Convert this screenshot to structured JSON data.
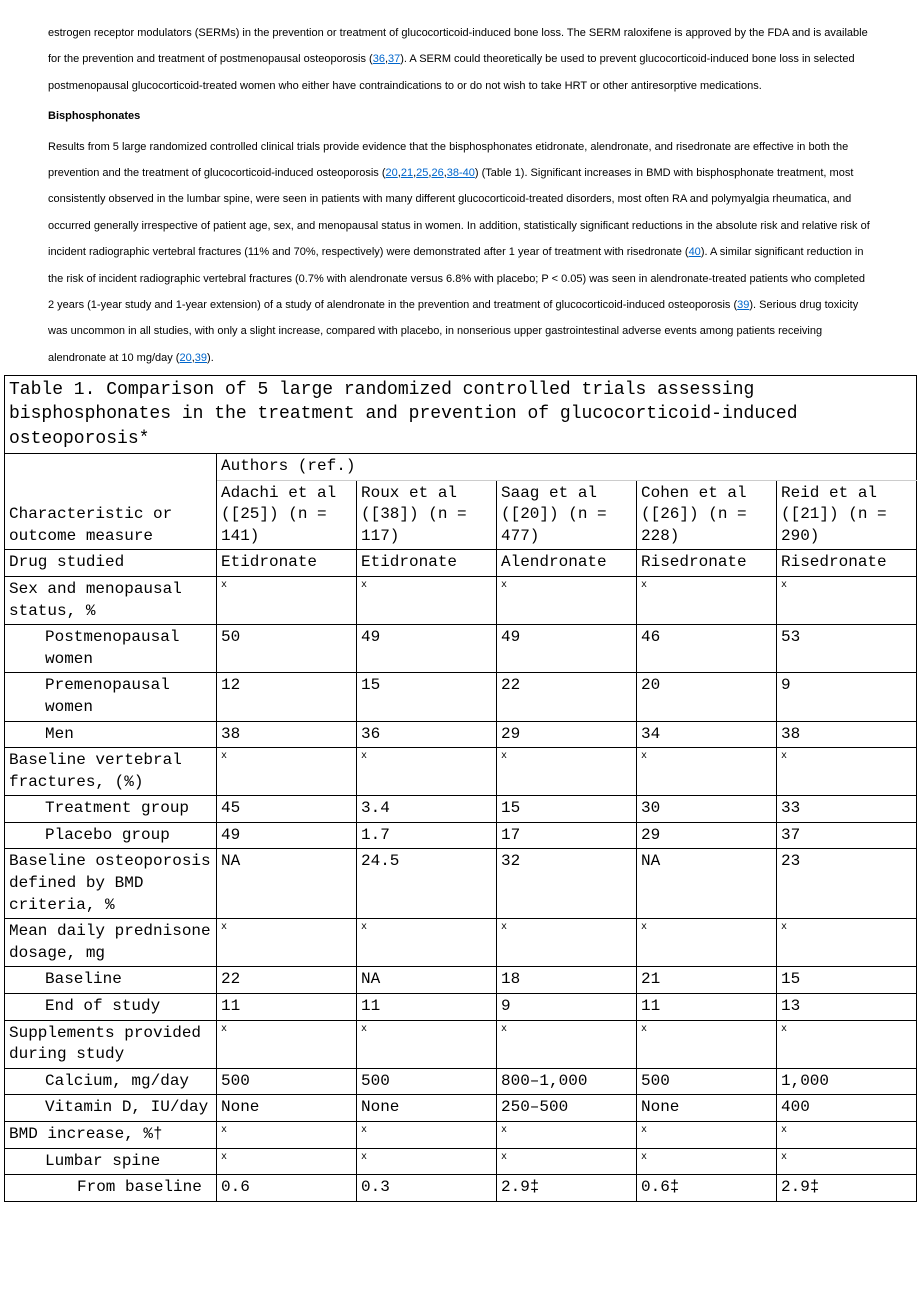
{
  "paragraphs": {
    "p1_a": "estrogen receptor modulators (SERMs) in the prevention or treatment of glucocorticoid-induced bone loss. The SERM raloxifene is approved by the FDA and is available for the prevention and treatment of postmenopausal osteoporosis (",
    "p1_ref1": "36",
    "p1_sep1": ",",
    "p1_ref2": "37",
    "p1_b": "). A SERM could theoretically be used to prevent glucocorticoid-induced bone loss in selected postmenopausal glucocorticoid-treated women who either have contraindications to or do not wish to take HRT or other antiresorptive medications."
  },
  "heading_bisphosphonates": "Bisphosphonates",
  "p2": {
    "a": "Results from 5 large randomized controlled clinical trials provide evidence that the bisphosphonates etidronate, alendronate, and risedronate are effective in both the prevention and the treatment of glucocorticoid-induced osteoporosis (",
    "r1": "20",
    "s1": ",",
    "r2": "21",
    "s2": ",",
    "r3": "25",
    "s3": ",",
    "r4": "26",
    "s4": ",",
    "r5": "38-40",
    "b": ") (Table 1). Significant increases in BMD with bisphosphonate treatment, most consistently observed in the lumbar spine, were seen in patients with many different glucocorticoid-treated disorders, most often RA and polymyalgia rheumatica, and occurred generally irrespective of patient age, sex, and menopausal status in women. In addition, statistically significant reductions in the absolute risk and relative risk of incident radiographic vertebral fractures (11% and 70%, respectively) were demonstrated after 1 year of treatment with risedronate (",
    "r6": "40",
    "c": "). A similar significant reduction in the risk of incident radiographic vertebral fractures (0.7% with alendronate versus 6.8% with placebo; P < 0.05) was seen in alendronate-treated patients who completed 2 years (1-year study and 1-year extension) of a study of alendronate in the prevention and treatment of glucocorticoid-induced osteoporosis (",
    "r7": "39",
    "d": "). Serious drug toxicity was uncommon in all studies, with only a slight increase, compared with placebo, in nonserious upper gastrointestinal adverse events among patients receiving alendronate at 10 mg/day (",
    "r8": "20",
    "s5": ",",
    "r9": "39",
    "e": ")."
  },
  "table": {
    "caption": "Table 1. Comparison of 5 large randomized controlled trials assessing bisphosphonates in the treatment and prevention of glucocorticoid-induced osteoporosis*",
    "header_rowcol": "Characteristic or outcome measure",
    "header_group": "Authors (ref.)",
    "cols": [
      "Adachi et al ([25]) (n = 141)",
      "Roux et al ([38]) (n = 117)",
      "Saag et al ([20]) (n = 477)",
      "Cohen et al ([26]) (n = 228)",
      "Reid et al ([21]) (n = 290)"
    ],
    "rows": [
      {
        "label": "Drug studied",
        "indent": 0,
        "vals": [
          "Etidronate",
          "Etidronate",
          "Alendronate",
          "Risedronate",
          "Risedronate"
        ]
      },
      {
        "label": "Sex and menopausal status, %",
        "indent": 0,
        "vals": [
          "x",
          "x",
          "x",
          "x",
          "x"
        ],
        "x": true
      },
      {
        "label": "Postmenopausal women",
        "indent": 1,
        "vals": [
          "50",
          "49",
          "49",
          "46",
          "53"
        ]
      },
      {
        "label": "Premenopausal women",
        "indent": 1,
        "vals": [
          "12",
          "15",
          "22",
          "20",
          "9"
        ]
      },
      {
        "label": "Men",
        "indent": 1,
        "vals": [
          "38",
          "36",
          "29",
          "34",
          "38"
        ]
      },
      {
        "label": "Baseline vertebral fractures, (%)",
        "indent": 0,
        "vals": [
          "x",
          "x",
          "x",
          "x",
          "x"
        ],
        "x": true
      },
      {
        "label": "Treatment group",
        "indent": 1,
        "vals": [
          "45",
          "3.4",
          "15",
          "30",
          "33"
        ]
      },
      {
        "label": "Placebo group",
        "indent": 1,
        "vals": [
          "49",
          "1.7",
          "17",
          "29",
          "37"
        ]
      },
      {
        "label": "Baseline osteoporosis defined by BMD criteria, %",
        "indent": 0,
        "vals": [
          "NA",
          "24.5",
          "32",
          "NA",
          "23"
        ]
      },
      {
        "label": "Mean daily prednisone dosage, mg",
        "indent": 0,
        "vals": [
          "x",
          "x",
          "x",
          "x",
          "x"
        ],
        "x": true
      },
      {
        "label": "Baseline",
        "indent": 1,
        "vals": [
          "22",
          "NA",
          "18",
          "21",
          "15"
        ]
      },
      {
        "label": "End of study",
        "indent": 1,
        "vals": [
          "11",
          "11",
          "9",
          "11",
          "13"
        ]
      },
      {
        "label": "Supplements provided during study",
        "indent": 0,
        "vals": [
          "x",
          "x",
          "x",
          "x",
          "x"
        ],
        "x": true
      },
      {
        "label": "Calcium, mg/day",
        "indent": 1,
        "vals": [
          "500",
          "500",
          "800–1,000",
          "500",
          "1,000"
        ]
      },
      {
        "label": "Vitamin D, IU/day",
        "indent": 1,
        "vals": [
          "None",
          "None",
          "250–500",
          "None",
          "400"
        ]
      },
      {
        "label": "BMD increase, %†",
        "indent": 0,
        "vals": [
          "x",
          "x",
          "x",
          "x",
          "x"
        ],
        "x": true
      },
      {
        "label": "Lumbar spine",
        "indent": 1,
        "vals": [
          "x",
          "x",
          "x",
          "x",
          "x"
        ],
        "x": true
      },
      {
        "label": "From baseline",
        "indent": 2,
        "vals": [
          "0.6",
          "0.3",
          "2.9‡",
          "0.6‡",
          "2.9‡"
        ]
      }
    ]
  }
}
